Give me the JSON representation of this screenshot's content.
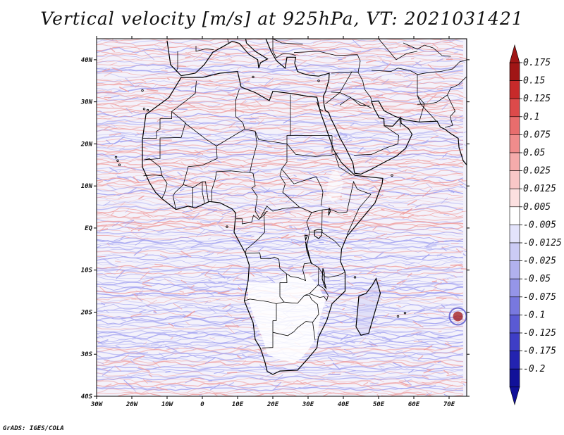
{
  "title": "Vertical velocity [m/s] at 925hPa, VT: 2021031421",
  "credit": "GrADS: IGES/COLA",
  "axes": {
    "lat_labels": [
      "40N",
      "30N",
      "20N",
      "10N",
      "EQ",
      "10S",
      "20S",
      "30S",
      "40S"
    ],
    "lon_labels": [
      "30W",
      "20W",
      "10W",
      "0",
      "10E",
      "20E",
      "30E",
      "40E",
      "50E",
      "60E",
      "70E"
    ]
  },
  "chart_data": {
    "type": "heatmap",
    "title": "Vertical velocity [m/s] at 925hPa, VT: 2021031421",
    "variable": "Vertical velocity",
    "units": "m/s",
    "level": "925hPa",
    "valid_time": "2021031421",
    "xlabel": "",
    "ylabel": "",
    "xlim": [
      -30,
      75
    ],
    "ylim": [
      -40,
      45
    ],
    "colorbar": {
      "labels": [
        "0.175",
        "0.15",
        "0.125",
        "0.1",
        "0.075",
        "0.05",
        "0.025",
        "0.0125",
        "0.005",
        "-0.005",
        "-0.0125",
        "-0.025",
        "-0.05",
        "-0.075",
        "-0.1",
        "-0.125",
        "-0.175",
        "-0.2"
      ],
      "colors": [
        "#a01616",
        "#c72a2a",
        "#dc4a4a",
        "#e86d6d",
        "#f08c8c",
        "#f5abab",
        "#f9c7c7",
        "#fce0e0",
        "#ffffff",
        "#e3e3fb",
        "#cbcbf5",
        "#b1b1ee",
        "#9595e8",
        "#7878df",
        "#5a5ad4",
        "#3e3ec6",
        "#2323b0",
        "#111199"
      ]
    }
  },
  "colors": {
    "pos_field": "#ef9a9a",
    "neg_field": "#9e9ef0",
    "coast": "#000000"
  }
}
